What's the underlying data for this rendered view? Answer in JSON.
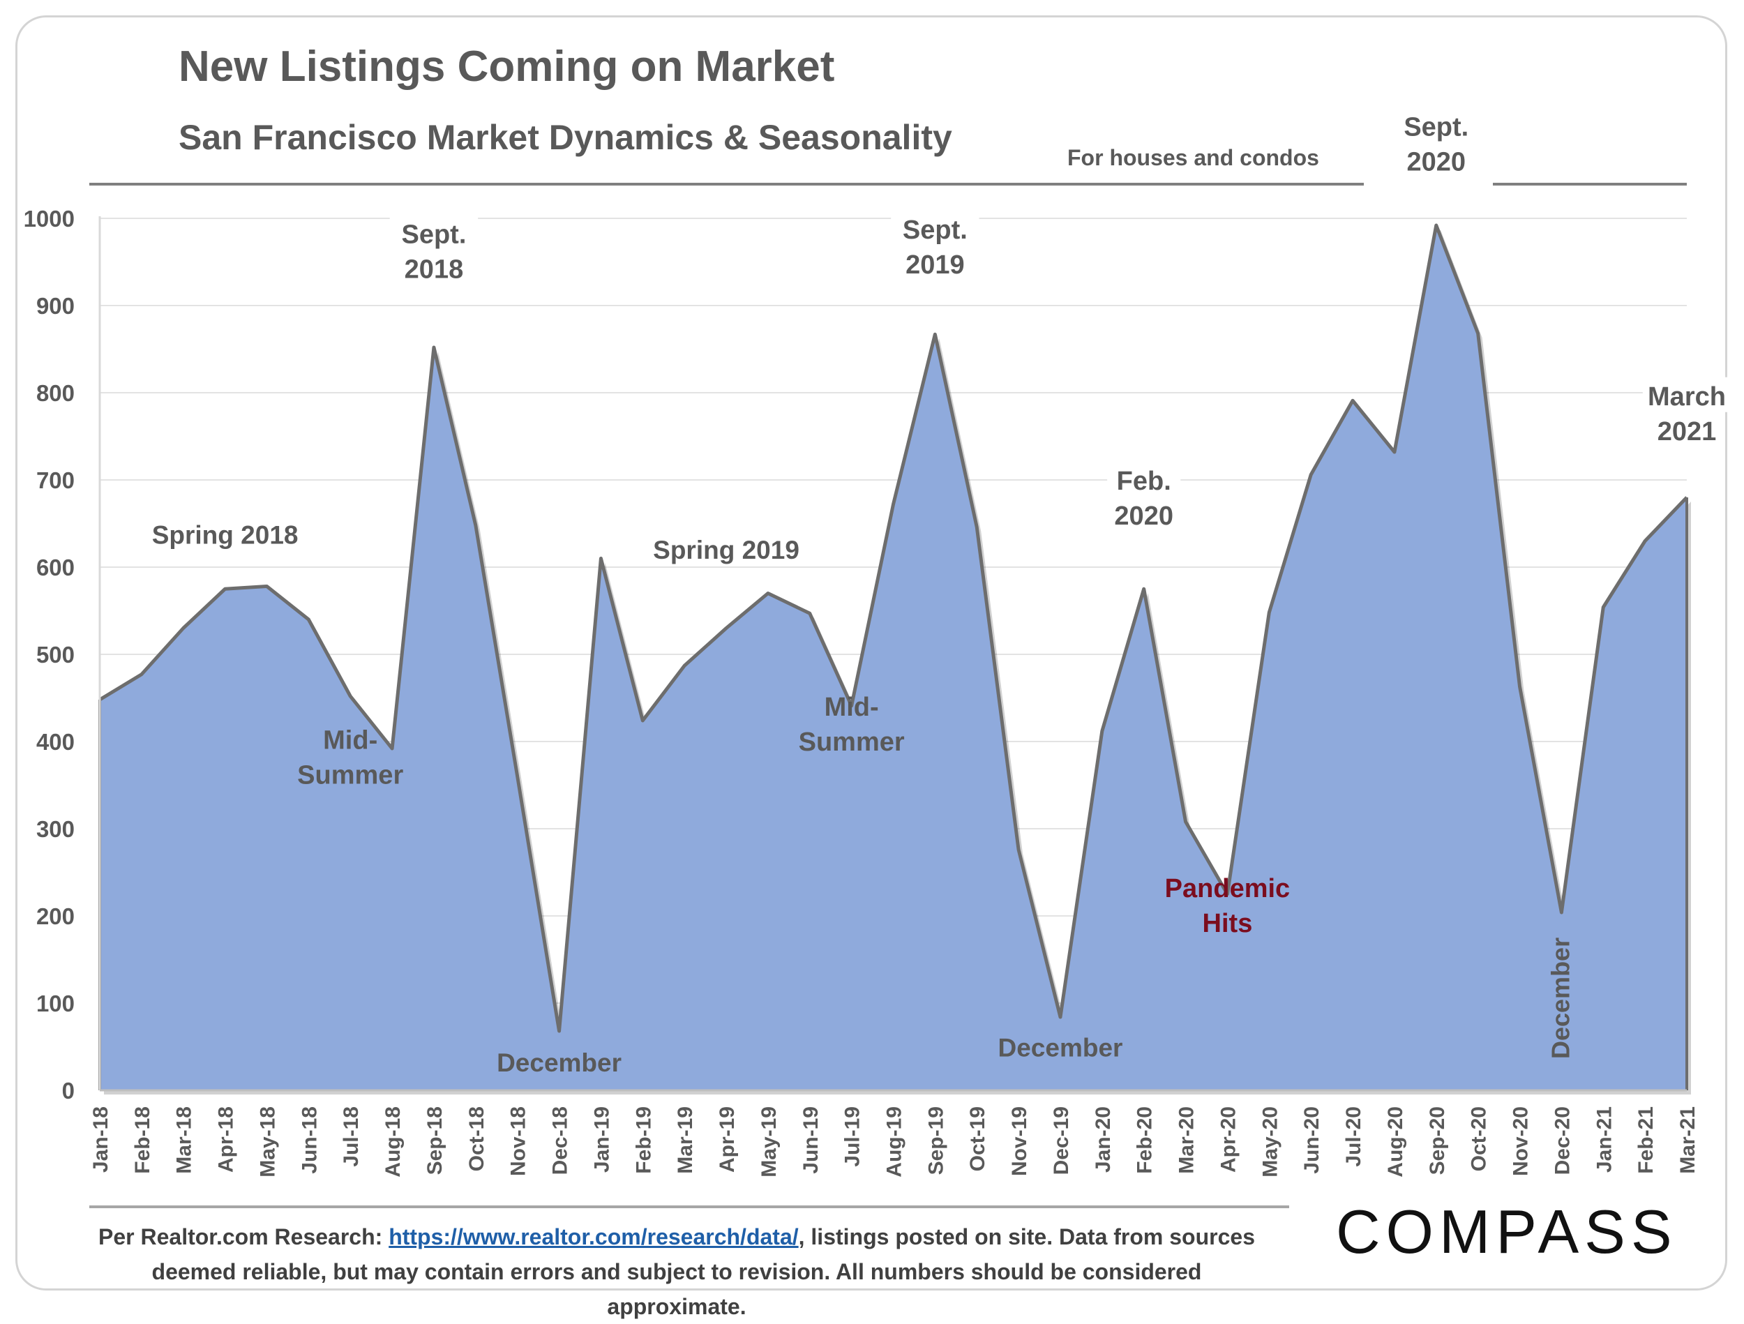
{
  "title": "New Listings Coming on Market",
  "subtitle": "San Francisco Market Dynamics & Seasonality",
  "note": "For houses and condos",
  "footer": {
    "prefix": "Per Realtor.com Research: ",
    "link": "https://www.realtor.com/research/data/",
    "suffix_line1": ", listings posted on site. Data from sources",
    "line2": "deemed reliable, but may contain errors and subject to revision. All numbers should be considered approximate."
  },
  "brand": "COMPASS",
  "colors": {
    "area_fill": "#8faadc",
    "area_line": "#6d6d6d",
    "text": "#595959",
    "pandemic": "#7b0d1e"
  },
  "chart_data": {
    "type": "area",
    "x": [
      "Jan-18",
      "Feb-18",
      "Mar-18",
      "Apr-18",
      "May-18",
      "Jun-18",
      "Jul-18",
      "Aug-18",
      "Sep-18",
      "Oct-18",
      "Nov-18",
      "Dec-18",
      "Jan-19",
      "Feb-19",
      "Mar-19",
      "Apr-19",
      "May-19",
      "Jun-19",
      "Jul-19",
      "Aug-19",
      "Sep-19",
      "Oct-19",
      "Nov-19",
      "Dec-19",
      "Jan-20",
      "Feb-20",
      "Mar-20",
      "Apr-20",
      "May-20",
      "Jun-20",
      "Jul-20",
      "Aug-20",
      "Sep-20",
      "Oct-20",
      "Nov-20",
      "Dec-20",
      "Jan-21",
      "Feb-21",
      "Mar-21"
    ],
    "values": [
      448,
      477,
      530,
      575,
      578,
      540,
      452,
      392,
      852,
      648,
      360,
      68,
      610,
      424,
      487,
      530,
      570,
      547,
      441,
      672,
      867,
      646,
      276,
      84,
      412,
      575,
      308,
      225,
      548,
      706,
      791,
      732,
      992,
      868,
      463,
      204,
      554,
      630,
      680
    ],
    "ylim": [
      0,
      1000
    ],
    "yticks": [
      0,
      100,
      200,
      300,
      400,
      500,
      600,
      700,
      800,
      900,
      1000
    ],
    "grid": true,
    "annotations": [
      {
        "lines": [
          "Spring 2018"
        ],
        "anchor": "Apr-18",
        "level": 630,
        "color": "text"
      },
      {
        "lines": [
          "Sept.",
          "2018"
        ],
        "anchor": "Sep-18",
        "level": 935,
        "color": "text"
      },
      {
        "lines": [
          "Mid-",
          "Summer"
        ],
        "anchor": "Jul-18",
        "level": 355,
        "color": "text"
      },
      {
        "lines": [
          "December"
        ],
        "anchor": "Dec-18",
        "level": 25,
        "color": "text"
      },
      {
        "lines": [
          "Spring 2019"
        ],
        "anchor": "Apr-19",
        "level": 613,
        "color": "text"
      },
      {
        "lines": [
          "Sept.",
          "2019"
        ],
        "anchor": "Sep-19",
        "level": 940,
        "color": "text"
      },
      {
        "lines": [
          "Mid-",
          "Summer"
        ],
        "anchor": "Jul-19",
        "level": 393,
        "color": "text"
      },
      {
        "lines": [
          "December"
        ],
        "anchor": "Dec-19",
        "level": 42,
        "color": "text"
      },
      {
        "lines": [
          "Feb.",
          "2020"
        ],
        "anchor": "Feb-20",
        "level": 652,
        "color": "text"
      },
      {
        "lines": [
          "Pandemic",
          "Hits"
        ],
        "anchor": "Apr-20",
        "level": 185,
        "color": "pandemic"
      },
      {
        "lines": [
          "Sept.",
          "2020"
        ],
        "anchor": "Sep-20",
        "level": 1058,
        "color": "text"
      },
      {
        "lines": [
          "March",
          "2021"
        ],
        "anchor": "Mar-21",
        "level": 749,
        "color": "text"
      },
      {
        "lines": [
          "December"
        ],
        "anchor": "Dec-20",
        "level": 100,
        "color": "text",
        "rotated": true
      }
    ]
  }
}
